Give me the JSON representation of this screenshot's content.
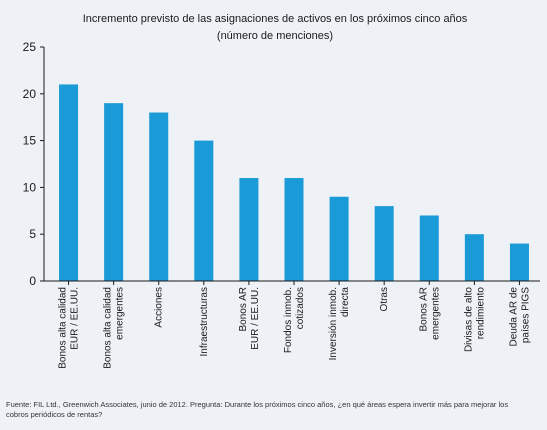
{
  "chart_data": {
    "type": "bar",
    "title": "Incremento previsto de las asignaciones de activos en los próximos cinco años",
    "subtitle": "(número de menciones)",
    "xlabel": "",
    "ylabel": "",
    "ylim": [
      0,
      25
    ],
    "yticks": [
      0,
      5,
      10,
      15,
      20,
      25
    ],
    "grid": false,
    "bar_color": "#1a9ad6",
    "categories": [
      [
        "Bonos alta calidad",
        "EUR / EE.UU."
      ],
      [
        "Bonos alta calidad",
        "emergentes"
      ],
      [
        "Acciones"
      ],
      [
        "Infraestructuras"
      ],
      [
        "Bonos AR",
        "EUR / EE.UU."
      ],
      [
        "Fondos inmob.",
        "cotizados"
      ],
      [
        "Inversión inmob.",
        "directa"
      ],
      [
        "Otras"
      ],
      [
        "Bonos AR",
        "emergentes"
      ],
      [
        "Divisas de alto",
        "rendimiento"
      ],
      [
        "Deuda AR de",
        "países PIGS"
      ]
    ],
    "values": [
      21,
      19,
      18,
      15,
      11,
      11,
      9,
      8,
      7,
      5,
      4
    ]
  },
  "footnote": {
    "line1": "Fuente: FIL Ltd., Greenwich Associates, junio de 2012. Pregunta: Durante los próximos cinco años, ¿en qué áreas espera invertir más para mejorar los",
    "line2": "cobros periódicos de rentas?"
  }
}
